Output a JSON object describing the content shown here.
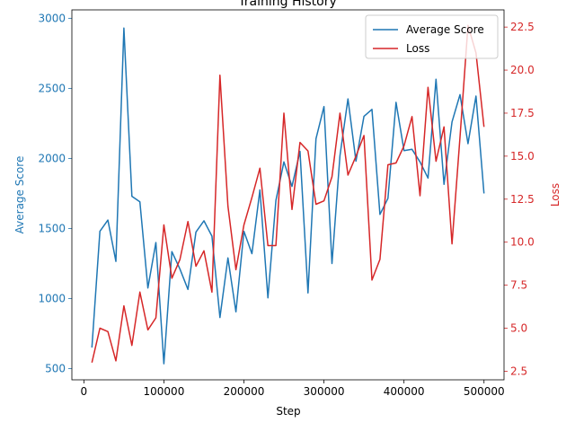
{
  "chart_data": {
    "type": "line",
    "title": "Training History",
    "xlabel": "Step",
    "ylabel_left": "Average Score",
    "ylabel_right": "Loss",
    "xlim": [
      -15000,
      525000
    ],
    "ylim_left": [
      420,
      3060
    ],
    "ylim_right": [
      2.0,
      23.5
    ],
    "x_ticks": [
      0,
      100000,
      200000,
      300000,
      400000,
      500000
    ],
    "y_ticks_left": [
      500,
      1000,
      1500,
      2000,
      2500,
      3000
    ],
    "y_ticks_right": [
      2.5,
      5.0,
      7.5,
      10.0,
      12.5,
      15.0,
      17.5,
      20.0,
      22.5
    ],
    "grid": false,
    "legend_position": "top-right",
    "colors": {
      "score": "#1f77b4",
      "loss": "#d62728"
    },
    "x": [
      10000,
      20000,
      30000,
      40000,
      50000,
      60000,
      70000,
      80000,
      90000,
      100000,
      110000,
      120000,
      130000,
      140000,
      150000,
      160000,
      170000,
      180000,
      190000,
      200000,
      210000,
      220000,
      230000,
      240000,
      250000,
      260000,
      270000,
      280000,
      290000,
      300000,
      310000,
      320000,
      330000,
      340000,
      350000,
      360000,
      370000,
      380000,
      390000,
      400000,
      410000,
      420000,
      430000,
      440000,
      450000,
      460000,
      470000,
      480000,
      490000,
      500000
    ],
    "series": [
      {
        "name": "Average Score",
        "axis": "left",
        "values": [
          650,
          1480,
          1560,
          1265,
          2930,
          1730,
          1690,
          1075,
          1400,
          535,
          1335,
          1210,
          1065,
          1475,
          1555,
          1445,
          865,
          1290,
          905,
          1480,
          1320,
          1775,
          1005,
          1700,
          1975,
          1800,
          2050,
          1040,
          2140,
          2370,
          1250,
          2020,
          2425,
          1980,
          2300,
          2350,
          1600,
          1715,
          2400,
          2055,
          2065,
          1975,
          1860,
          2565,
          1815,
          2260,
          2455,
          2105,
          2445,
          1750
        ]
      },
      {
        "name": "Loss",
        "axis": "right",
        "values": [
          3.0,
          5.0,
          4.8,
          3.1,
          6.3,
          4.0,
          7.1,
          4.9,
          5.6,
          11.0,
          7.9,
          9.0,
          11.2,
          8.6,
          9.5,
          7.1,
          19.7,
          12.1,
          8.4,
          11.0,
          12.6,
          14.3,
          9.8,
          9.8,
          17.5,
          11.9,
          15.8,
          15.3,
          12.2,
          12.4,
          13.8,
          17.5,
          13.9,
          15.0,
          16.2,
          7.8,
          9.0,
          14.5,
          14.6,
          15.6,
          17.3,
          12.7,
          19.0,
          14.7,
          16.7,
          9.9,
          16.1,
          22.6,
          21.0,
          16.7
        ]
      }
    ]
  }
}
